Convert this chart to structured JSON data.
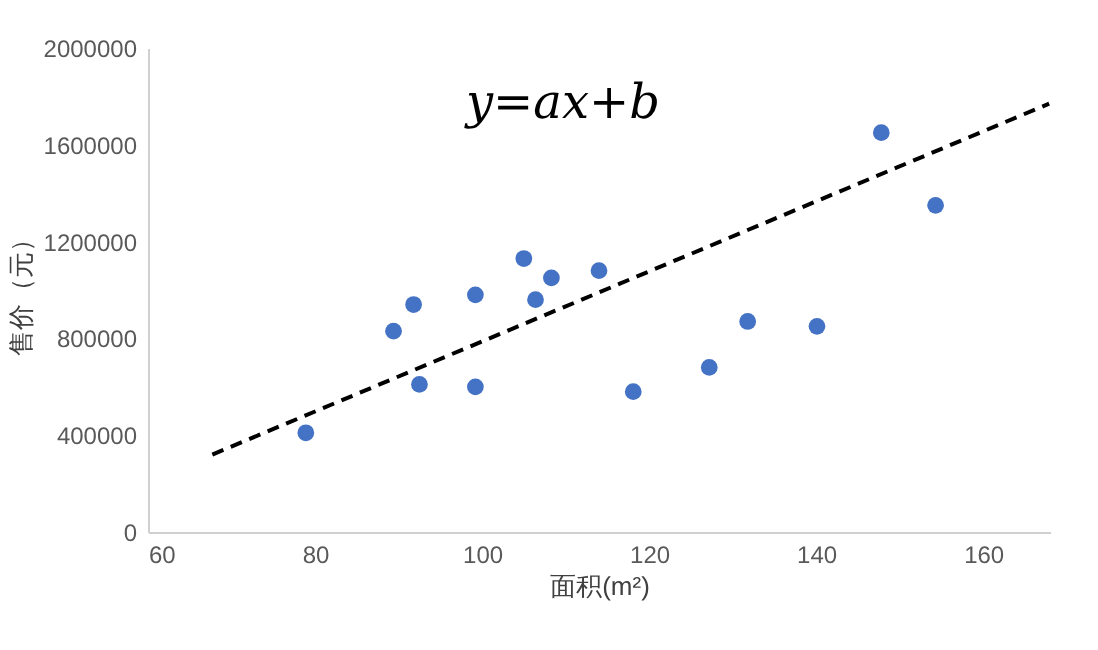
{
  "chart_data": {
    "type": "scatter",
    "xlabel": "面积(m²)",
    "ylabel": "售价（元）",
    "annotations": [
      "y=ax+b"
    ],
    "xlim": [
      60,
      168
    ],
    "xticks": [
      60,
      80,
      100,
      120,
      140,
      160
    ],
    "ylim": [
      0,
      2000000
    ],
    "yticks": [
      0,
      400000,
      800000,
      1200000,
      1600000,
      2000000
    ],
    "grid": false,
    "series": [
      {
        "color": "#4472c4",
        "marker": "circle",
        "x": [
          78.9,
          89.4,
          91.8,
          92.5,
          99.2,
          99.2,
          105,
          106.4,
          108.3,
          114,
          118.1,
          127.2,
          131.8,
          140.1,
          147.8,
          154.3
        ],
        "values": [
          410000,
          830000,
          940000,
          610000,
          980000,
          600000,
          1130000,
          960000,
          1050000,
          1080000,
          580000,
          680000,
          870000,
          850000,
          1650000,
          1350000
        ]
      },
      {
        "type": "line",
        "color": "#000000",
        "line_style": "dashed",
        "x": [
          67.7,
          167.9
        ],
        "values": [
          320000,
          1770000
        ]
      }
    ]
  }
}
